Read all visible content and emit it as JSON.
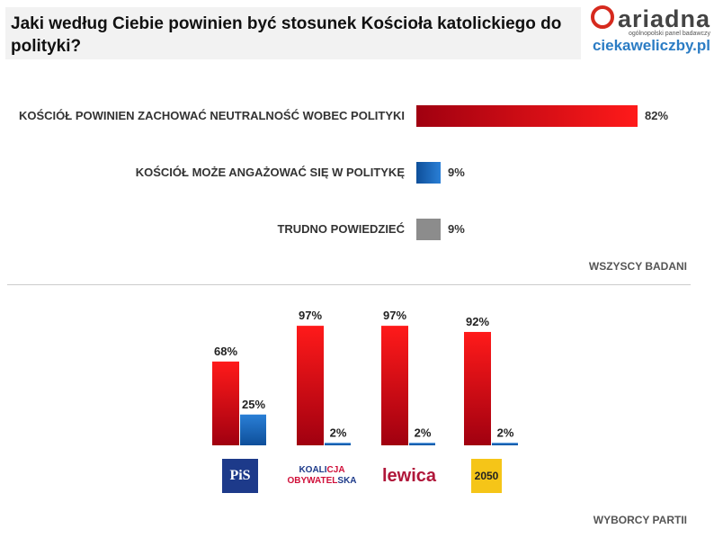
{
  "header": {
    "title": "Jaki według Ciebie powinien być stosunek Kościoła katolickiego do polityki?",
    "brand": "ariadna",
    "brand_tagline": "ogólnopolski panel badawczy",
    "site": "ciekaweliczby.pl"
  },
  "colors": {
    "red": "#e8141b",
    "blue": "#1a6bbf",
    "gray": "#8c8c8c"
  },
  "chart_data": [
    {
      "type": "bar",
      "orientation": "horizontal",
      "section_label": "WSZYSCY BADANI",
      "categories": [
        "KOŚCIÓŁ POWINIEN ZACHOWAĆ NEUTRALNOŚĆ WOBEC POLITYKI",
        "KOŚCIÓŁ MOŻE ANGAŻOWAĆ SIĘ W POLITYKĘ",
        "TRUDNO POWIEDZIEĆ"
      ],
      "values": [
        82,
        9,
        9
      ],
      "labels": [
        "82%",
        "9%",
        "9%"
      ],
      "colors": [
        "red",
        "blue",
        "gray"
      ]
    },
    {
      "type": "bar",
      "orientation": "vertical",
      "section_label": "WYBORCY PARTII",
      "categories": [
        "PiS",
        "KOALICJA OBYWATELSKA",
        "lewica",
        "2050"
      ],
      "series": [
        {
          "values": [
            68,
            97,
            97,
            92
          ],
          "labels": [
            "68%",
            "97%",
            "97%",
            "92%"
          ],
          "color": "red"
        },
        {
          "values": [
            25,
            2,
            2,
            2
          ],
          "labels": [
            "25%",
            "2%",
            "2%",
            "2%"
          ],
          "color": "blue"
        }
      ]
    }
  ],
  "parties": {
    "pis": "PiS",
    "ko_1": "KOALI",
    "ko_1b": "CJA",
    "ko_2": "OBYWATEL",
    "ko_2b": "SKA",
    "lewica": "lewica",
    "p2050": "2050"
  }
}
